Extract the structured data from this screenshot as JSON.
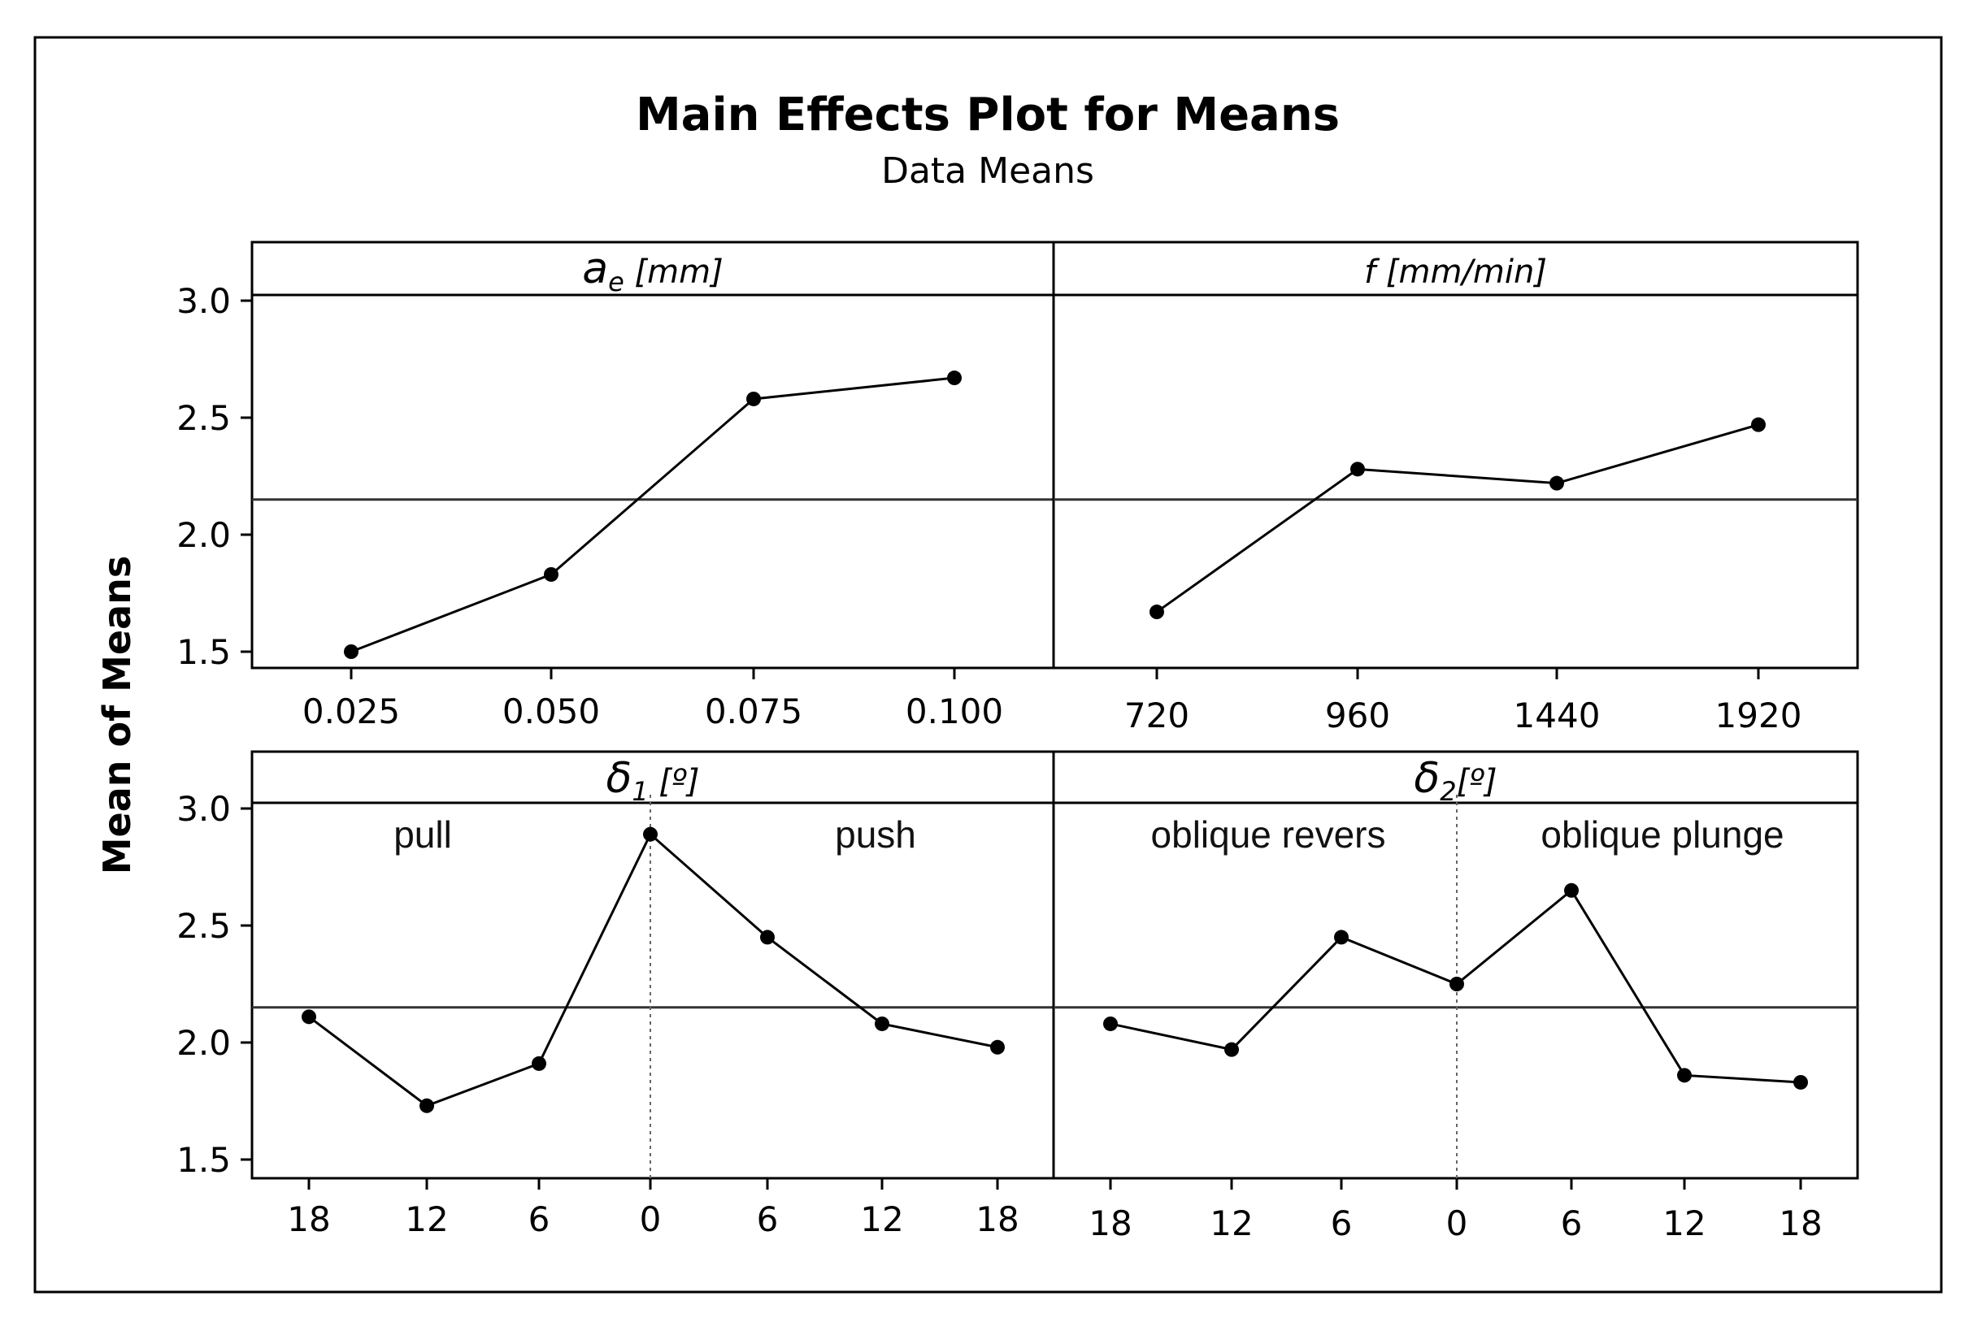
{
  "figure": {
    "title": "Main Effects Plot for Means",
    "subtitle": "Data Means",
    "ylabel": "Mean of Means"
  },
  "chart_data": [
    {
      "type": "line",
      "panel": "top-left",
      "title_main": "a",
      "title_sub": "e",
      "title_rest": " [mm]",
      "categories": [
        "0.025",
        "0.050",
        "0.075",
        "0.100"
      ],
      "values": [
        1.5,
        1.83,
        2.58,
        2.67
      ],
      "overall_mean": 2.15,
      "ylim": [
        1.45,
        3.25
      ],
      "yticks": [
        "1.5",
        "2.0",
        "2.5",
        "3.0"
      ]
    },
    {
      "type": "line",
      "panel": "top-right",
      "title_main": "f [mm/min]",
      "title_sub": "",
      "title_rest": "",
      "categories": [
        "720",
        "960",
        "1440",
        "1920"
      ],
      "values": [
        1.67,
        2.28,
        2.22,
        2.47
      ],
      "overall_mean": 2.15,
      "ylim": [
        1.45,
        3.25
      ]
    },
    {
      "type": "line",
      "panel": "bottom-left",
      "title_main": "δ",
      "title_sub": "1",
      "title_rest": " [º]",
      "categories": [
        "18",
        "12",
        "6",
        "0",
        "6",
        "12",
        "18"
      ],
      "values": [
        2.11,
        1.73,
        1.91,
        2.89,
        2.45,
        2.08,
        1.98
      ],
      "overall_mean": 2.15,
      "ylim": [
        1.45,
        3.25
      ],
      "yticks": [
        "1.5",
        "2.0",
        "2.5",
        "3.0"
      ],
      "region_left": "pull",
      "region_right": "push"
    },
    {
      "type": "line",
      "panel": "bottom-right",
      "title_main": "δ",
      "title_sub": "2",
      "title_rest": "[º]",
      "categories": [
        "18",
        "12",
        "6",
        "0",
        "6",
        "12",
        "18"
      ],
      "values": [
        2.08,
        1.97,
        2.45,
        2.25,
        2.65,
        1.86,
        1.83
      ],
      "overall_mean": 2.15,
      "ylim": [
        1.45,
        3.25
      ],
      "region_left": "oblique revers",
      "region_right": "oblique plunge"
    }
  ]
}
